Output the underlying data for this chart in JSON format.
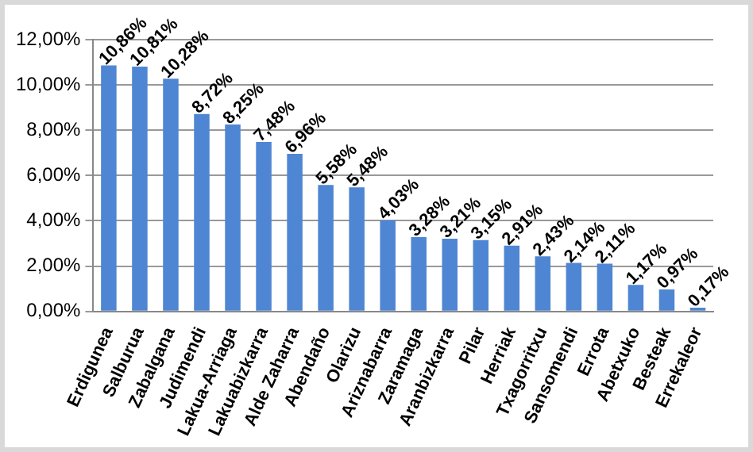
{
  "chart_data": {
    "type": "bar",
    "categories": [
      "Erdigunea",
      "Salburua",
      "Zabalgana",
      "Judimendi",
      "Lakua-Arriaga",
      "Lakuabizkarra",
      "Alde Zaharra",
      "Abendaño",
      "Olarizu",
      "Ariznabarra",
      "Zaramaga",
      "Aranbizkarra",
      "Pilar",
      "Herriak",
      "Txagorritxu",
      "Sansomendi",
      "Errota",
      "Abetxuko",
      "Besteak",
      "Errekaleor"
    ],
    "values": [
      10.86,
      10.81,
      10.28,
      8.72,
      8.25,
      7.48,
      6.96,
      5.58,
      5.48,
      4.03,
      3.28,
      3.21,
      3.15,
      2.91,
      2.43,
      2.14,
      2.11,
      1.17,
      0.97,
      0.17
    ],
    "value_labels": [
      "10,86%",
      "10,81%",
      "10,28%",
      "8,72%",
      "8,25%",
      "7,48%",
      "6,96%",
      "5,58%",
      "5,48%",
      "4,03%",
      "3,28%",
      "3,21%",
      "3,15%",
      "2,91%",
      "2,43%",
      "2,14%",
      "2,11%",
      "1,17%",
      "0,97%",
      "0,17%"
    ],
    "color": "#4f86d3",
    "ylim": [
      0,
      12
    ],
    "yticks": [
      {
        "value": 0,
        "label": "0,00%"
      },
      {
        "value": 2,
        "label": "2,00%"
      },
      {
        "value": 4,
        "label": "4,00%"
      },
      {
        "value": 6,
        "label": "6,00%"
      },
      {
        "value": 8,
        "label": "8,00%"
      },
      {
        "value": 10,
        "label": "10,00%"
      },
      {
        "value": 12,
        "label": "12,00%"
      }
    ],
    "grid": "y"
  }
}
